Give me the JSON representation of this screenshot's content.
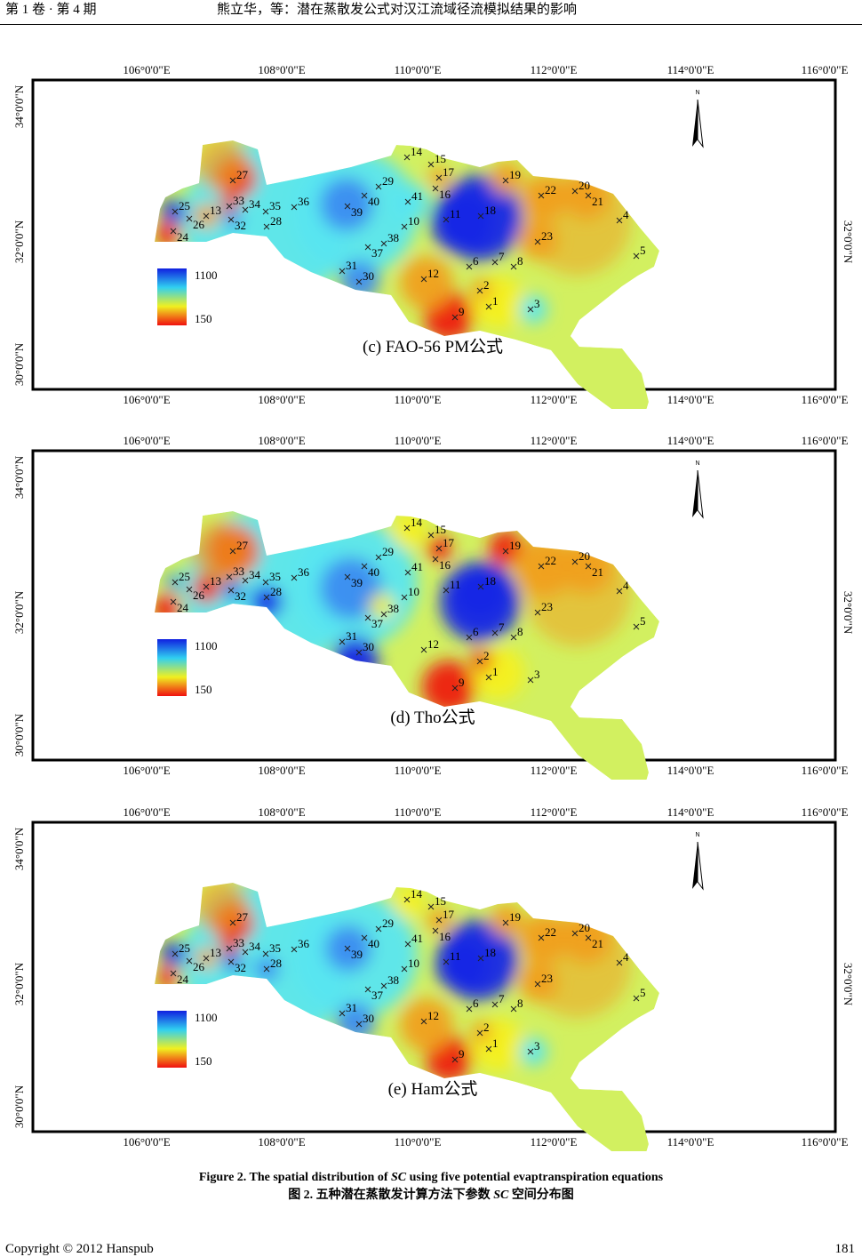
{
  "header": {
    "left": "第 1 卷 · 第 4 期",
    "center": "熊立华，等：潜在蒸散发公式对汉江流域径流模拟结果的影响"
  },
  "axes": {
    "lon_labels": [
      "106°0'0\"E",
      "108°0'0\"E",
      "110°0'0\"E",
      "112°0'0\"E",
      "114°0'0\"E",
      "116°0'0\"E"
    ],
    "lat_labels": [
      "34°0'0\"N",
      "32°0'0\"N",
      "30°0'0\"N"
    ],
    "north_label": "N"
  },
  "stations": [
    "1",
    "2",
    "3",
    "4",
    "5",
    "6",
    "7",
    "8",
    "9",
    "10",
    "11",
    "12",
    "13",
    "14",
    "15",
    "16",
    "17",
    "18",
    "19",
    "20",
    "21",
    "22",
    "23",
    "24",
    "25",
    "26",
    "27",
    "28",
    "29",
    "30",
    "31",
    "32",
    "33",
    "34",
    "35",
    "36",
    "37",
    "38",
    "39",
    "40",
    "41"
  ],
  "legend": {
    "max": "1100",
    "min": "150",
    "colors": [
      "#1020e0",
      "#30d0f0",
      "#f0f020",
      "#f01010"
    ]
  },
  "panels": [
    {
      "caption": "(c)  FAO-56 PM公式"
    },
    {
      "caption": "(d)  Tho公式"
    },
    {
      "caption": "(e)  Ham公式"
    }
  ],
  "figure_caption": {
    "en_prefix": "Figure 2. The spatial distribution of ",
    "en_var": "SC",
    "en_suffix": " using five potential evaptranspiration equations",
    "zh_prefix": "图 2.  五种潜在蒸散发计算方法下参数 ",
    "zh_var": "SC",
    "zh_suffix": " 空间分布图"
  },
  "footer": {
    "copyright": "Copyright © 2012 Hanspub",
    "page_number": "181"
  }
}
